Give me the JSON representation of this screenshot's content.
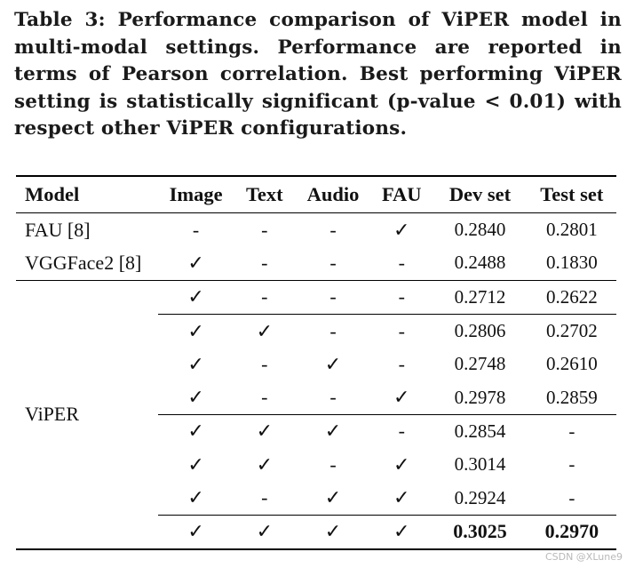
{
  "caption": "Table 3: Performance comparison of ViPER model in multi-modal settings. Performance are reported in terms of Pearson correlation. Best performing ViPER setting is statistically significant (p-value < 0.01) with respect other ViPER configurations.",
  "table": {
    "headers": [
      "Model",
      "Image",
      "Text",
      "Audio",
      "FAU",
      "Dev set",
      "Test set"
    ],
    "rows": [
      {
        "model": "FAU [8]",
        "image": "-",
        "text": "-",
        "audio": "-",
        "fau": "✓",
        "dev": "0.2840",
        "test": "0.2801"
      },
      {
        "model": "VGGFace2 [8]",
        "image": "✓",
        "text": "-",
        "audio": "-",
        "fau": "-",
        "dev": "0.2488",
        "test": "0.1830"
      },
      {
        "model": "ViPER",
        "image": "✓",
        "text": "-",
        "audio": "-",
        "fau": "-",
        "dev": "0.2712",
        "test": "0.2622"
      },
      {
        "image": "✓",
        "text": "✓",
        "audio": "-",
        "fau": "-",
        "dev": "0.2806",
        "test": "0.2702"
      },
      {
        "image": "✓",
        "text": "-",
        "audio": "✓",
        "fau": "-",
        "dev": "0.2748",
        "test": "0.2610"
      },
      {
        "image": "✓",
        "text": "-",
        "audio": "-",
        "fau": "✓",
        "dev": "0.2978",
        "test": "0.2859"
      },
      {
        "image": "✓",
        "text": "✓",
        "audio": "✓",
        "fau": "-",
        "dev": "0.2854",
        "test": "-"
      },
      {
        "image": "✓",
        "text": "✓",
        "audio": "-",
        "fau": "✓",
        "dev": "0.3014",
        "test": "-"
      },
      {
        "image": "✓",
        "text": "-",
        "audio": "✓",
        "fau": "✓",
        "dev": "0.2924",
        "test": "-"
      },
      {
        "image": "✓",
        "text": "✓",
        "audio": "✓",
        "fau": "✓",
        "dev": "0.3025",
        "test": "0.2970"
      }
    ]
  },
  "watermark": "CSDN @XLune9"
}
